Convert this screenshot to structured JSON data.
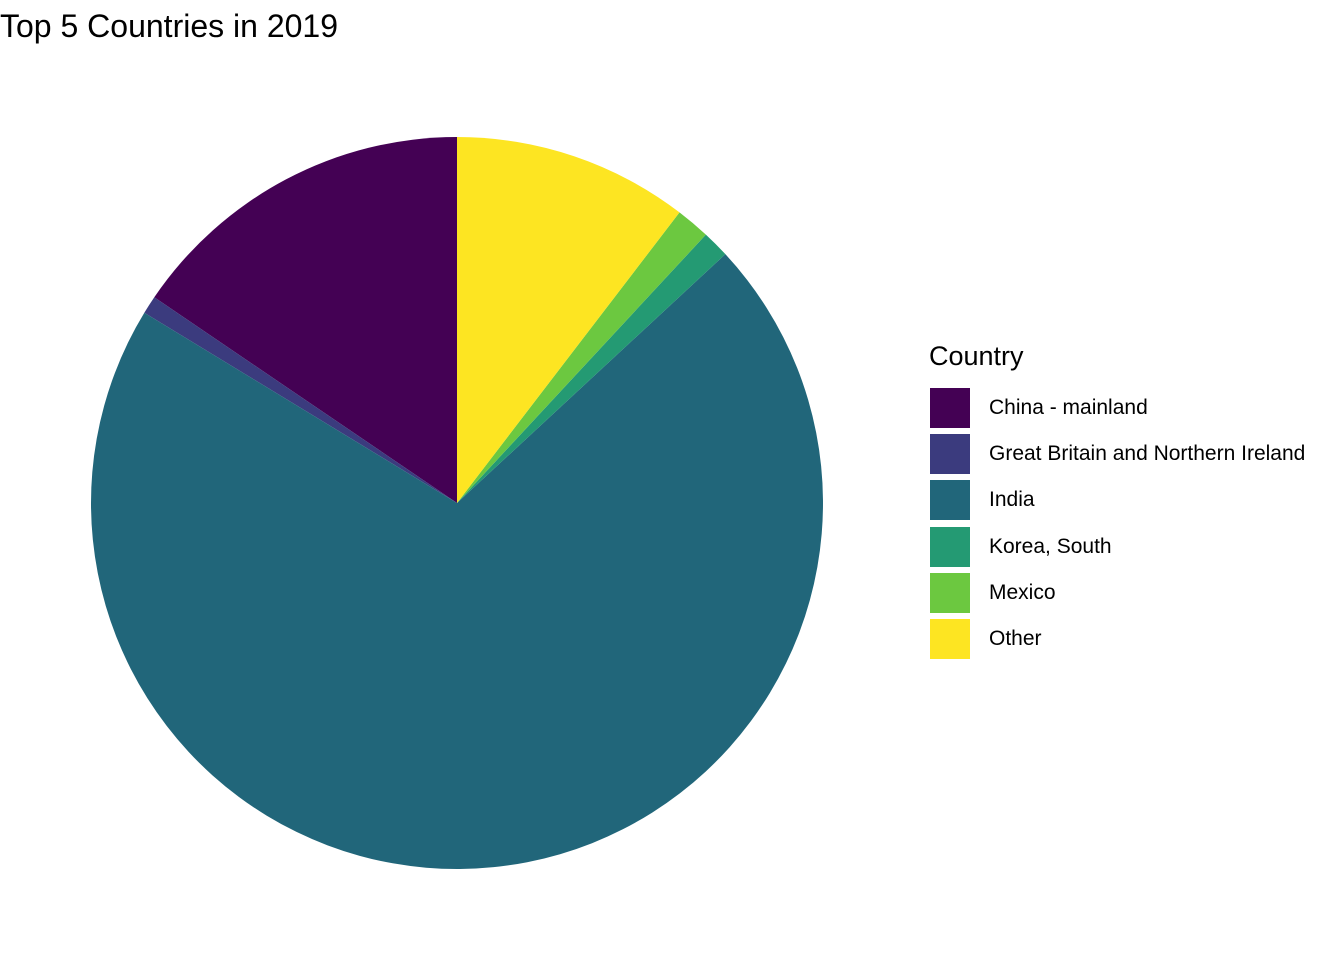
{
  "chart_data": {
    "type": "pie",
    "title": "Top 5 Countries in 2019",
    "legend": {
      "title": "Country",
      "position": "right"
    },
    "categories": [
      "China - mainland",
      "Great Britain and Northern Ireland",
      "India",
      "Korea, South",
      "Mexico",
      "Other"
    ],
    "values": [
      15.5,
      0.8,
      70.6,
      1.2,
      1.5,
      10.4
    ],
    "unit": "percent",
    "colors": [
      "#440154",
      "#3B3B7E",
      "#21667A",
      "#249A73",
      "#6CC840",
      "#FDE522"
    ],
    "start_angle": "12 o'clock",
    "direction": "counterclockwise"
  }
}
